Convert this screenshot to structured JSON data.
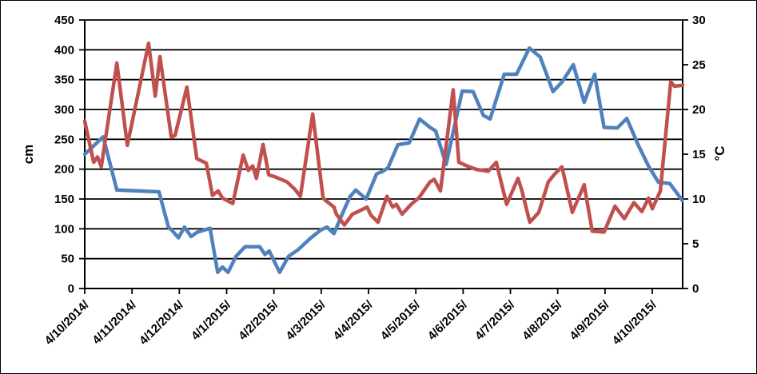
{
  "chart_data": {
    "type": "line",
    "title": "",
    "legend": "none",
    "grid": true,
    "x_axis": {
      "tick_labels": [
        "4/10/2014/",
        "4/11/2014/",
        "4/12/2014/",
        "4/1/2015/",
        "4/2/2015/",
        "4/3/2015/",
        "4/4/2015/",
        "4/5/2015/",
        "4/6/2015/",
        "4/7/2015/",
        "4/8/2015/",
        "4/9/2015/",
        "4/10/2015/"
      ],
      "months_span": 12.64
    },
    "left_axis": {
      "title": "cm",
      "min": 0,
      "max": 450,
      "step": 50,
      "tick_labels": [
        "0",
        "50",
        "100",
        "150",
        "200",
        "250",
        "300",
        "350",
        "400",
        "450"
      ]
    },
    "right_axis": {
      "title": "°C",
      "min": 0,
      "max": 30,
      "step": 5,
      "tick_labels": [
        "0",
        "5",
        "10",
        "15",
        "20",
        "25",
        "30"
      ]
    },
    "series": [
      {
        "name": "blue line (left axis, cm)",
        "axis": "left",
        "color": "#4F81BD",
        "stroke_width": 4.5,
        "points": [
          [
            0,
            225
          ],
          [
            0.39,
            254
          ],
          [
            0.68,
            165
          ],
          [
            1.57,
            162
          ],
          [
            1.77,
            103
          ],
          [
            1.86,
            96
          ],
          [
            1.98,
            85
          ],
          [
            2.11,
            103
          ],
          [
            2.25,
            87
          ],
          [
            2.37,
            94
          ],
          [
            2.65,
            101
          ],
          [
            2.81,
            27
          ],
          [
            2.91,
            36
          ],
          [
            3.03,
            27
          ],
          [
            3.2,
            54
          ],
          [
            3.39,
            70
          ],
          [
            3.7,
            70
          ],
          [
            3.81,
            57
          ],
          [
            3.9,
            63
          ],
          [
            4.12,
            27
          ],
          [
            4.31,
            54
          ],
          [
            4.51,
            65
          ],
          [
            4.77,
            84
          ],
          [
            4.99,
            98
          ],
          [
            5.12,
            103
          ],
          [
            5.27,
            92
          ],
          [
            5.49,
            133
          ],
          [
            5.61,
            154
          ],
          [
            5.73,
            165
          ],
          [
            5.95,
            150
          ],
          [
            6.17,
            192
          ],
          [
            6.29,
            196
          ],
          [
            6.41,
            202
          ],
          [
            6.62,
            241
          ],
          [
            6.86,
            244
          ],
          [
            7.08,
            284
          ],
          [
            7.3,
            270
          ],
          [
            7.42,
            264
          ],
          [
            7.64,
            208
          ],
          [
            7.98,
            331
          ],
          [
            8.21,
            330
          ],
          [
            8.43,
            290
          ],
          [
            8.57,
            284
          ],
          [
            8.87,
            359
          ],
          [
            9.13,
            359
          ],
          [
            9.4,
            403
          ],
          [
            9.63,
            388
          ],
          [
            9.9,
            330
          ],
          [
            10.09,
            346
          ],
          [
            10.33,
            375
          ],
          [
            10.56,
            312
          ],
          [
            10.78,
            359
          ],
          [
            10.98,
            270
          ],
          [
            11.26,
            269
          ],
          [
            11.46,
            285
          ],
          [
            11.7,
            241
          ],
          [
            11.92,
            205
          ],
          [
            12.13,
            178
          ],
          [
            12.37,
            176
          ],
          [
            12.63,
            148
          ]
        ]
      },
      {
        "name": "red line (right axis, °C)",
        "axis": "right",
        "color": "#C0504D",
        "stroke_width": 4.5,
        "points": [
          [
            0,
            18.7
          ],
          [
            0.19,
            14.1
          ],
          [
            0.27,
            14.7
          ],
          [
            0.35,
            13.6
          ],
          [
            0.68,
            25.2
          ],
          [
            0.9,
            16
          ],
          [
            1.35,
            27.4
          ],
          [
            1.49,
            21.5
          ],
          [
            1.59,
            25.9
          ],
          [
            1.83,
            16.9
          ],
          [
            1.91,
            17.1
          ],
          [
            2.16,
            22.5
          ],
          [
            2.37,
            14.5
          ],
          [
            2.45,
            14.3
          ],
          [
            2.57,
            14
          ],
          [
            2.7,
            10.4
          ],
          [
            2.82,
            10.9
          ],
          [
            2.91,
            10.1
          ],
          [
            3.13,
            9.5
          ],
          [
            3.35,
            14.9
          ],
          [
            3.46,
            13.2
          ],
          [
            3.55,
            13.7
          ],
          [
            3.63,
            12.3
          ],
          [
            3.77,
            16.1
          ],
          [
            3.89,
            12.7
          ],
          [
            4.01,
            12.5
          ],
          [
            4.28,
            11.9
          ],
          [
            4.44,
            11.1
          ],
          [
            4.56,
            10.3
          ],
          [
            4.82,
            19.5
          ],
          [
            5.04,
            10.1
          ],
          [
            5.1,
            9.8
          ],
          [
            5.27,
            9.1
          ],
          [
            5.32,
            8.3
          ],
          [
            5.49,
            7.1
          ],
          [
            5.66,
            8.3
          ],
          [
            5.78,
            8.6
          ],
          [
            5.97,
            9.1
          ],
          [
            6.05,
            8.2
          ],
          [
            6.2,
            7.4
          ],
          [
            6.39,
            10.3
          ],
          [
            6.51,
            9.1
          ],
          [
            6.59,
            9.4
          ],
          [
            6.71,
            8.3
          ],
          [
            6.9,
            9.4
          ],
          [
            7.06,
            10.1
          ],
          [
            7.3,
            11.9
          ],
          [
            7.39,
            12.2
          ],
          [
            7.52,
            10.9
          ],
          [
            7.79,
            22.2
          ],
          [
            7.91,
            14.1
          ],
          [
            8.08,
            13.7
          ],
          [
            8.28,
            13.3
          ],
          [
            8.53,
            13.1
          ],
          [
            8.7,
            14.1
          ],
          [
            8.92,
            9.4
          ],
          [
            9.16,
            12.3
          ],
          [
            9.24,
            11
          ],
          [
            9.41,
            7.4
          ],
          [
            9.6,
            8.5
          ],
          [
            9.8,
            11.9
          ],
          [
            9.92,
            12.7
          ],
          [
            10.09,
            13.6
          ],
          [
            10.31,
            8.5
          ],
          [
            10.56,
            11.6
          ],
          [
            10.73,
            6.4
          ],
          [
            10.98,
            6.3
          ],
          [
            11.21,
            9.2
          ],
          [
            11.41,
            7.8
          ],
          [
            11.61,
            9.6
          ],
          [
            11.78,
            8.6
          ],
          [
            11.92,
            10.1
          ],
          [
            12.0,
            8.9
          ],
          [
            12.17,
            10.9
          ],
          [
            12.39,
            23.1
          ],
          [
            12.47,
            22.6
          ],
          [
            12.64,
            22.7
          ]
        ]
      }
    ]
  }
}
